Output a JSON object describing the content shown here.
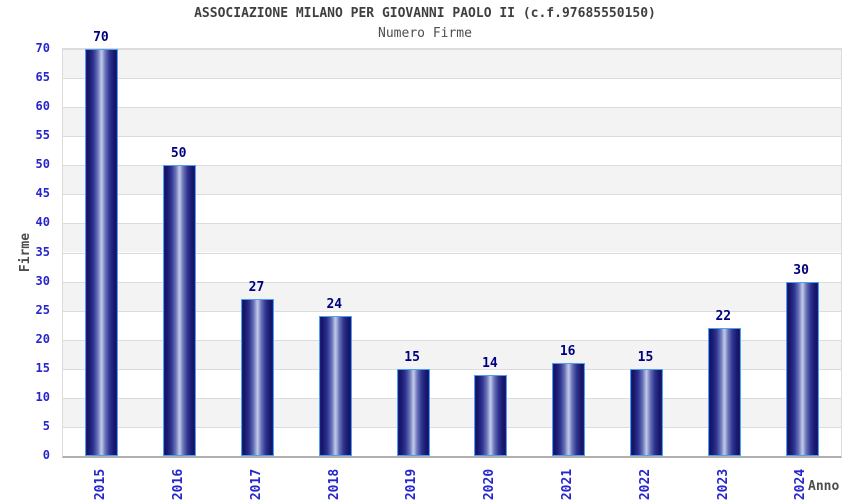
{
  "header": {
    "title": "ASSOCIAZIONE MILANO PER GIOVANNI PAOLO II (c.f.97685550150)",
    "subtitle": "Numero Firme"
  },
  "chart_data": {
    "type": "bar",
    "title": "ASSOCIAZIONE MILANO PER GIOVANNI PAOLO II (c.f.97685550150)",
    "subtitle": "Numero Firme",
    "categories": [
      "2015",
      "2016",
      "2017",
      "2018",
      "2019",
      "2020",
      "2021",
      "2022",
      "2023",
      "2024"
    ],
    "values": [
      70,
      50,
      27,
      24,
      15,
      14,
      16,
      15,
      22,
      30
    ],
    "xlabel": "Anno",
    "ylabel": "Firme",
    "ylim": [
      0,
      70
    ],
    "ytick_step": 5,
    "yticks": [
      0,
      5,
      10,
      15,
      20,
      25,
      30,
      35,
      40,
      45,
      50,
      55,
      60,
      65,
      70
    ],
    "grid": true,
    "alternating_bands": true,
    "legend_position": "none",
    "bar_value_labels": true
  },
  "colors": {
    "title": "#3f3f3f",
    "subtitle": "#4f4f4f",
    "axis_title": "#4d4d4d",
    "tick_label": "#2626cc",
    "value_label": "#00007f",
    "band_gray": "#f3f3f3",
    "gridline": "#dcdcdc",
    "axis_line": "#b0b0b0",
    "bar_border": "#4e9ef2",
    "bar_dark": "#14145e",
    "bar_mid": "#2e3490",
    "bar_light": "#c2c9e8",
    "plot_background": "#ffffff"
  }
}
